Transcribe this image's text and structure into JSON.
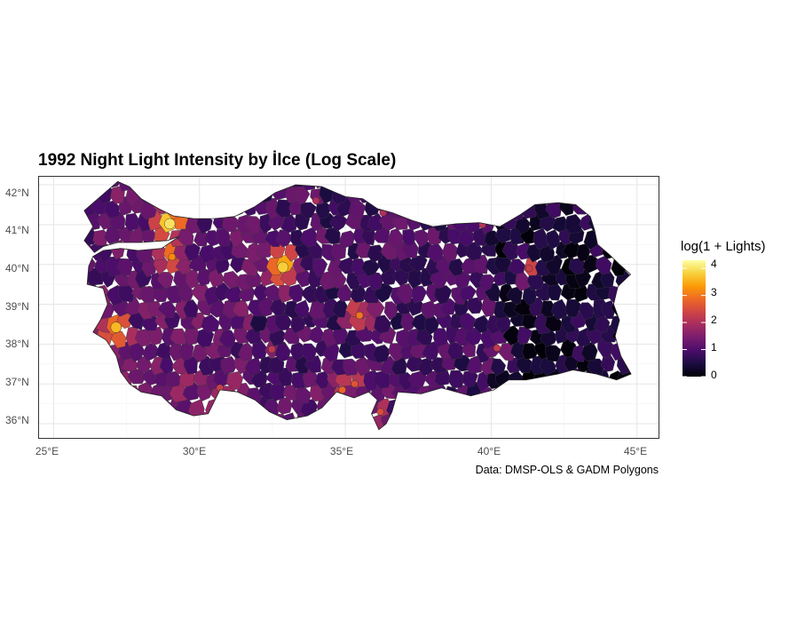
{
  "title": "1992 Night Light Intensity by İlce (Log Scale)",
  "caption": "Data: DMSP-OLS & GADM Polygons",
  "map": {
    "type": "choropleth",
    "region": "Turkey",
    "unit": "district (İlce)",
    "grid": true,
    "x_axis": {
      "ticks": [
        "25°E",
        "30°E",
        "35°E",
        "40°E",
        "45°E"
      ],
      "range": [
        24.5,
        45.8
      ]
    },
    "y_axis": {
      "ticks": [
        "36°N",
        "37°N",
        "38°N",
        "39°N",
        "40°N",
        "41°N",
        "42°N"
      ],
      "range": [
        35.6,
        42.2
      ]
    },
    "highlights": [
      {
        "lon": 28.98,
        "lat": 41.02,
        "value": 4.0
      },
      {
        "lon": 32.86,
        "lat": 39.93,
        "value": 3.8
      },
      {
        "lon": 27.14,
        "lat": 38.42,
        "value": 3.6
      },
      {
        "lon": 29.06,
        "lat": 40.19,
        "value": 3.2
      },
      {
        "lon": 35.49,
        "lat": 38.72,
        "value": 3.0
      },
      {
        "lon": 34.9,
        "lat": 36.85,
        "value": 2.8
      },
      {
        "lon": 35.32,
        "lat": 37.0,
        "value": 2.6
      },
      {
        "lon": 36.2,
        "lat": 36.3,
        "value": 2.5
      },
      {
        "lon": 30.7,
        "lat": 36.9,
        "value": 2.3
      },
      {
        "lon": 40.2,
        "lat": 37.9,
        "value": 2.2
      },
      {
        "lon": 41.3,
        "lat": 39.9,
        "value": 2.3
      },
      {
        "lon": 39.7,
        "lat": 41.0,
        "value": 2.1
      },
      {
        "lon": 32.48,
        "lat": 37.87,
        "value": 2.2
      },
      {
        "lon": 34.0,
        "lat": 41.6,
        "value": 2.0
      },
      {
        "lon": 36.3,
        "lat": 41.3,
        "value": 2.0
      }
    ]
  },
  "legend": {
    "title": "log(1 + Lights)",
    "ticks": [
      "4",
      "3",
      "2",
      "1",
      "0"
    ],
    "min": 0,
    "max": 4.3,
    "palette": "inferno",
    "colors": [
      "#000004",
      "#1b0c41",
      "#4a0c6b",
      "#781c6d",
      "#a52c60",
      "#cf4446",
      "#ed6925",
      "#fb9b06",
      "#f7d13d",
      "#fcffa4"
    ]
  }
}
